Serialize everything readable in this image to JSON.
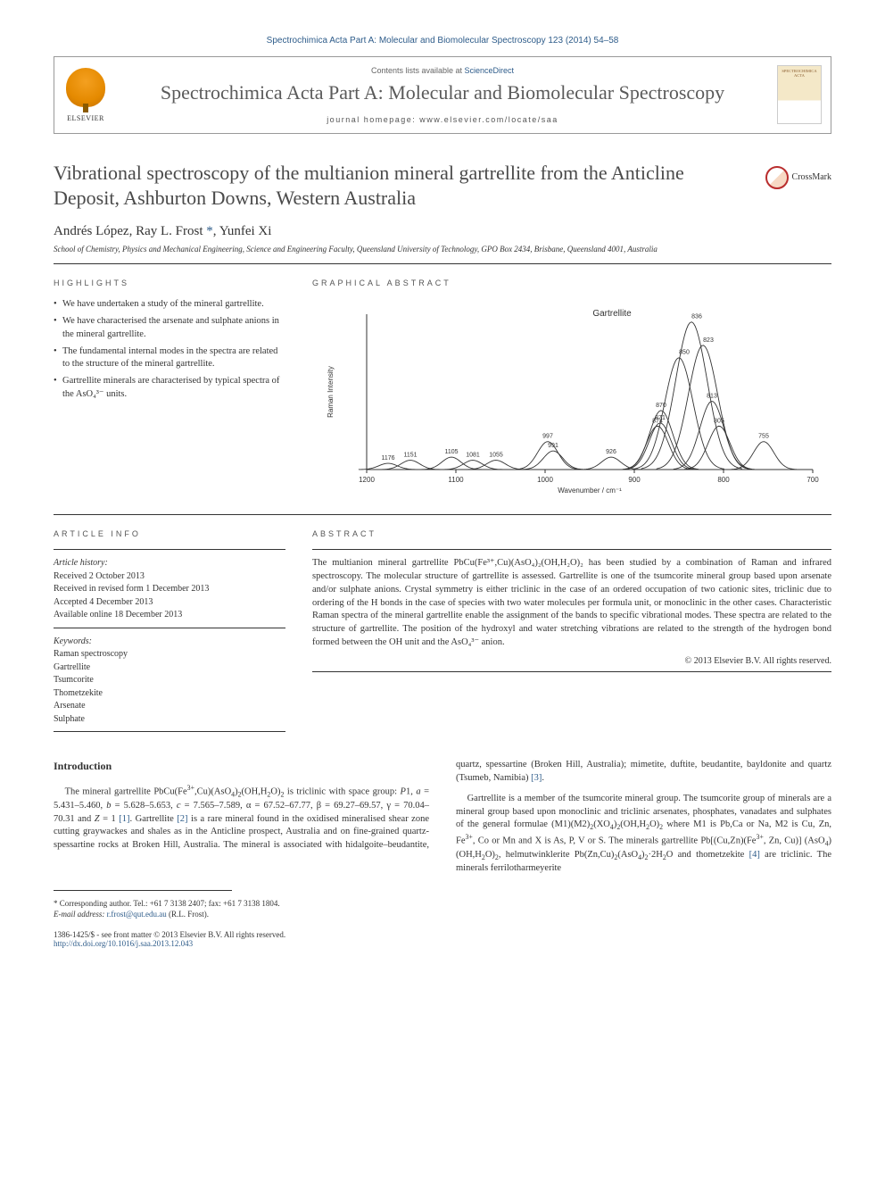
{
  "header": {
    "citation": "Spectrochimica Acta Part A: Molecular and Biomolecular Spectroscopy 123 (2014) 54–58",
    "contents_prefix": "Contents lists available at ",
    "contents_link": "ScienceDirect",
    "journal_name": "Spectrochimica Acta Part A: Molecular and Biomolecular Spectroscopy",
    "homepage_label": "journal homepage: ",
    "homepage_url": "www.elsevier.com/locate/saa",
    "publisher": "ELSEVIER",
    "cover_text": "SPECTROCHIMICA ACTA"
  },
  "title": "Vibrational spectroscopy of the multianion mineral gartrellite from the Anticline Deposit, Ashburton Downs, Western Australia",
  "crossmark_label": "CrossMark",
  "authors_html": "Andrés López, Ray L. Frost *, Yunfei Xi",
  "affiliation": "School of Chemistry, Physics and Mechanical Engineering, Science and Engineering Faculty, Queensland University of Technology, GPO Box 2434, Brisbane, Queensland 4001, Australia",
  "highlights_head": "HIGHLIGHTS",
  "highlights": [
    "We have undertaken a study of the mineral gartrellite.",
    "We have characterised the arsenate and sulphate anions in the mineral gartrellite.",
    "The fundamental internal modes in the spectra are related to the structure of the mineral gartrellite.",
    "Gartrellite minerals are characterised by typical spectra of the AsO₄³⁻ units."
  ],
  "graphical_abstract_head": "GRAPHICAL ABSTRACT",
  "ga_chart": {
    "title": "Gartrellite",
    "x_label": "Wavenumber / cm⁻¹",
    "y_label": "Raman Intensity",
    "x_range": [
      1200,
      700
    ],
    "x_ticks": [
      1200,
      1100,
      1000,
      900,
      800,
      700
    ],
    "peaks": [
      {
        "x": 1176,
        "h": 0.04
      },
      {
        "x": 1151,
        "h": 0.06
      },
      {
        "x": 1105,
        "h": 0.08
      },
      {
        "x": 1081,
        "h": 0.06
      },
      {
        "x": 1055,
        "h": 0.06
      },
      {
        "x": 997,
        "h": 0.18
      },
      {
        "x": 991,
        "h": 0.12
      },
      {
        "x": 926,
        "h": 0.08
      },
      {
        "x": 874,
        "h": 0.28
      },
      {
        "x": 870,
        "h": 0.38
      },
      {
        "x": 871,
        "h": 0.3
      },
      {
        "x": 850,
        "h": 0.72
      },
      {
        "x": 836,
        "h": 0.95
      },
      {
        "x": 823,
        "h": 0.8
      },
      {
        "x": 813,
        "h": 0.44
      },
      {
        "x": 805,
        "h": 0.28
      },
      {
        "x": 755,
        "h": 0.18
      }
    ],
    "stroke": "#333333",
    "stroke_width": 0.9,
    "label_fontsize": 7,
    "axis_fontsize": 8
  },
  "article_info_head": "ARTICLE INFO",
  "article_info": {
    "history_head": "Article history:",
    "history": [
      "Received 2 October 2013",
      "Received in revised form 1 December 2013",
      "Accepted 4 December 2013",
      "Available online 18 December 2013"
    ],
    "keywords_head": "Keywords:",
    "keywords": [
      "Raman spectroscopy",
      "Gartrellite",
      "Tsumcorite",
      "Thometzekite",
      "Arsenate",
      "Sulphate"
    ]
  },
  "abstract_head": "ABSTRACT",
  "abstract": "The multianion mineral gartrellite PbCu(Fe³⁺,Cu)(AsO₄)₂(OH,H₂O)₂ has been studied by a combination of Raman and infrared spectroscopy. The molecular structure of gartrellite is assessed. Gartrellite is one of the tsumcorite mineral group based upon arsenate and/or sulphate anions. Crystal symmetry is either triclinic in the case of an ordered occupation of two cationic sites, triclinic due to ordering of the H bonds in the case of species with two water molecules per formula unit, or monoclinic in the other cases. Characteristic Raman spectra of the mineral gartrellite enable the assignment of the bands to specific vibrational modes. These spectra are related to the structure of gartrellite. The position of the hydroxyl and water stretching vibrations are related to the strength of the hydrogen bond formed between the OH unit and the AsO₄³⁻ anion.",
  "copyright": "© 2013 Elsevier B.V. All rights reserved.",
  "intro_head": "Introduction",
  "intro_p1": "The mineral gartrellite PbCu(Fe³⁺,Cu)(AsO₄)₂(OH,H₂O)₂ is triclinic with space group: P1, a = 5.431–5.460, b = 5.628–5.653, c = 7.565–7.589, α = 67.52–67.77, β = 69.27–69.57, γ = 70.04–70.31 and Z = 1 [1]. Gartrellite [2] is a rare mineral found in the oxidised mineralised shear zone cutting graywackes and shales as in the Anticline prospect, Australia and on fine-grained",
  "intro_p2": "quartz-spessartine rocks at Broken Hill, Australia. The mineral is associated with hidalgoite–beudantite, quartz, spessartine (Broken Hill, Australia); mimetite, duftite, beudantite, bayldonite and quartz (Tsumeb, Namibia) [3].",
  "intro_p3": "Gartrellite is a member of the tsumcorite mineral group. The tsumcorite group of minerals are a mineral group based upon monoclinic and triclinic arsenates, phosphates, vanadates and sulphates of the general formulae (M1)(M2)₂(XO₄)₂(OH,H₂O)₂ where M1 is Pb,Ca or Na, M2 is Cu, Zn, Fe³⁺, Co or Mn and X is As, P, V or S. The minerals gartrellite Pb[(Cu,Zn)(Fe³⁺, Zn, Cu)] (AsO₄)(OH,H₂O)₂, helmutwinklerite Pb(Zn,Cu)₂(AsO₄)₂·2H₂O and thometzekite [4] are triclinic. The minerals ferrilotharmeyerite",
  "footnote": {
    "corr": "* Corresponding author. Tel.: +61 7 3138 2407; fax: +61 7 3138 1804.",
    "email_label": "E-mail address: ",
    "email": "r.frost@qut.edu.au",
    "email_name": " (R.L. Frost)."
  },
  "bottom": {
    "left1": "1386-1425/$ - see front matter © 2013 Elsevier B.V. All rights reserved.",
    "doi": "http://dx.doi.org/10.1016/j.saa.2013.12.043"
  }
}
